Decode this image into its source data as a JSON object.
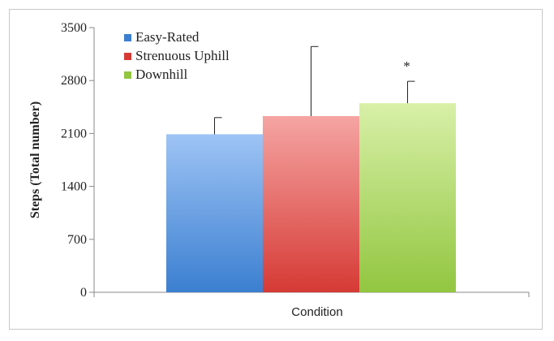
{
  "chart_data": {
    "type": "bar",
    "title": "",
    "xlabel": "Condition",
    "ylabel": "Steps (Total number)",
    "ylim": [
      0,
      3500
    ],
    "yticks": [
      "0",
      "700",
      "1400",
      "2100",
      "2800",
      "3500"
    ],
    "grid": false,
    "legend_position": "top-left",
    "series": [
      {
        "name": "Easy-Rated",
        "value": 2090,
        "error": 220,
        "color_top": "#9ec4f5",
        "color_bottom": "#3b7fd0",
        "annotation": ""
      },
      {
        "name": "Strenuous Uphill",
        "value": 2330,
        "error": 920,
        "color_top": "#f5a5a3",
        "color_bottom": "#d63a35",
        "annotation": ""
      },
      {
        "name": "Downhill",
        "value": 2500,
        "error": 290,
        "color_top": "#d8f0a8",
        "color_bottom": "#92c640",
        "annotation": "*"
      }
    ]
  }
}
